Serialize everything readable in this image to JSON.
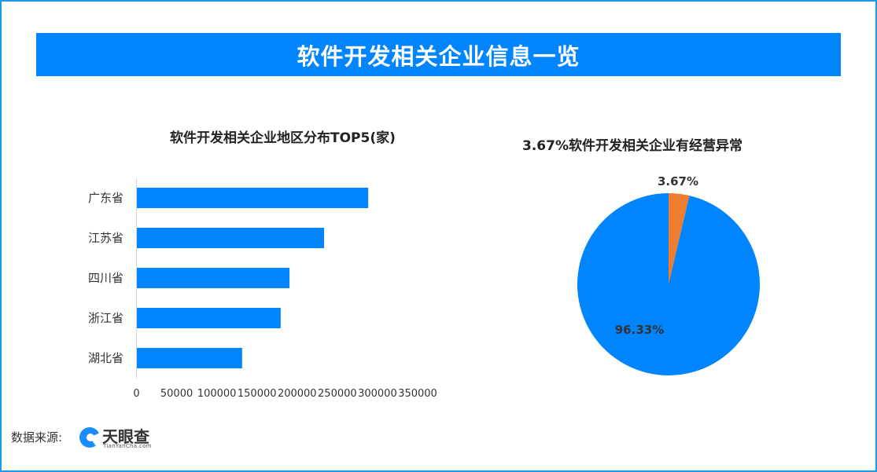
{
  "banner_title": "软件开发相关企业信息一览",
  "chart_data": [
    {
      "type": "bar",
      "orientation": "horizontal",
      "title": "软件开发相关企业地区分布TOP5(家)",
      "categories": [
        "广东省",
        "江苏省",
        "四川省",
        "浙江省",
        "湖北省"
      ],
      "values": [
        288000,
        233000,
        190000,
        179000,
        131000
      ],
      "xlim": [
        0,
        350000
      ],
      "xticks": [
        "0",
        "50000",
        "100000",
        "150000",
        "200000",
        "250000",
        "300000",
        "350000"
      ],
      "grid": false,
      "color": "#0085ff"
    },
    {
      "type": "pie",
      "title": "3.67%软件开发相关企业有经营异常",
      "slices": [
        {
          "label": "3.67%",
          "value": 3.67,
          "color": "#ed7d31"
        },
        {
          "label": "96.33%",
          "value": 96.33,
          "color": "#0085ff"
        }
      ]
    }
  ],
  "footer": {
    "source_label": "数据来源:",
    "logo_name": "天眼查",
    "logo_sub": "TianYanCha.com"
  }
}
